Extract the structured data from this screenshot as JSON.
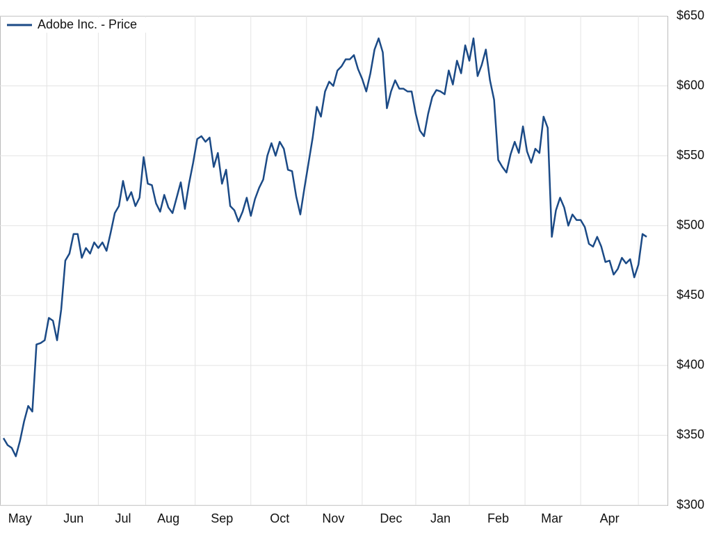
{
  "chart_data": {
    "type": "line",
    "categories": [
      null,
      null,
      null,
      null,
      "May",
      null,
      null,
      null,
      null,
      null,
      null,
      null,
      null,
      null,
      null,
      null,
      null,
      "Jun",
      null,
      null,
      null,
      null,
      null,
      null,
      null,
      null,
      null,
      null,
      null,
      "Jul",
      null,
      null,
      null,
      null,
      null,
      null,
      null,
      null,
      null,
      null,
      "Aug",
      null,
      null,
      null,
      null,
      null,
      null,
      null,
      null,
      null,
      null,
      null,
      null,
      "Sep",
      null,
      null,
      null,
      null,
      null,
      null,
      null,
      null,
      null,
      null,
      null,
      null,
      null,
      "Oct",
      null,
      null,
      null,
      null,
      null,
      null,
      null,
      null,
      null,
      null,
      null,
      null,
      "Nov",
      null,
      null,
      null,
      null,
      null,
      null,
      null,
      null,
      null,
      null,
      null,
      null,
      null,
      "Dec",
      null,
      null,
      null,
      null,
      null,
      null,
      null,
      null,
      null,
      null,
      null,
      "Jan",
      null,
      null,
      null,
      null,
      null,
      null,
      null,
      null,
      null,
      null,
      null,
      null,
      null,
      "Feb",
      null,
      null,
      null,
      null,
      null,
      null,
      null,
      null,
      null,
      null,
      null,
      null,
      "Mar",
      null,
      null,
      null,
      null,
      null,
      null,
      null,
      null,
      null,
      null,
      null,
      null,
      null,
      "Apr",
      null,
      null,
      null,
      null,
      null,
      null,
      null,
      null,
      null
    ],
    "series": [
      {
        "name": "Adobe Inc. - Price",
        "color": "#1b4a86",
        "values": [
          348,
          343,
          341,
          335,
          346,
          360,
          371,
          367,
          415,
          416,
          418,
          434,
          432,
          418,
          440,
          475,
          480,
          494,
          494,
          477,
          484,
          480,
          488,
          484,
          488,
          482,
          495,
          509,
          514,
          532,
          518,
          524,
          514,
          520,
          549,
          530,
          529,
          516,
          510,
          522,
          513,
          509,
          520,
          531,
          512,
          530,
          545,
          562,
          564,
          560,
          563,
          542,
          552,
          530,
          540,
          514,
          511,
          503,
          510,
          520,
          507,
          519,
          527,
          533,
          550,
          559,
          550,
          560,
          555,
          540,
          539,
          521,
          508,
          527,
          545,
          563,
          585,
          578,
          596,
          603,
          600,
          611,
          614,
          619,
          619,
          622,
          612,
          605,
          596,
          609,
          626,
          634,
          624,
          584,
          596,
          604,
          598,
          598,
          596,
          596,
          580,
          568,
          564,
          580,
          592,
          597,
          596,
          594,
          611,
          601,
          618,
          609,
          629,
          618,
          634,
          607,
          615,
          626,
          604,
          590,
          547,
          542,
          538,
          551,
          560,
          552,
          571,
          553,
          545,
          555,
          552,
          578,
          570,
          492,
          511,
          520,
          513,
          500,
          508,
          504,
          504,
          499,
          487,
          485,
          492,
          485,
          474,
          475,
          465,
          469,
          477,
          473,
          476,
          463,
          472,
          494,
          492
        ]
      }
    ],
    "ylim": [
      300,
      650
    ],
    "yticks": [
      {
        "value": 300,
        "label": "$300"
      },
      {
        "value": 350,
        "label": "$350"
      },
      {
        "value": 400,
        "label": "$400"
      },
      {
        "value": 450,
        "label": "$450"
      },
      {
        "value": 500,
        "label": "$500"
      },
      {
        "value": 550,
        "label": "$550"
      },
      {
        "value": 600,
        "label": "$600"
      },
      {
        "value": 650,
        "label": "$650"
      }
    ],
    "grid": true,
    "legend": "top-left"
  }
}
